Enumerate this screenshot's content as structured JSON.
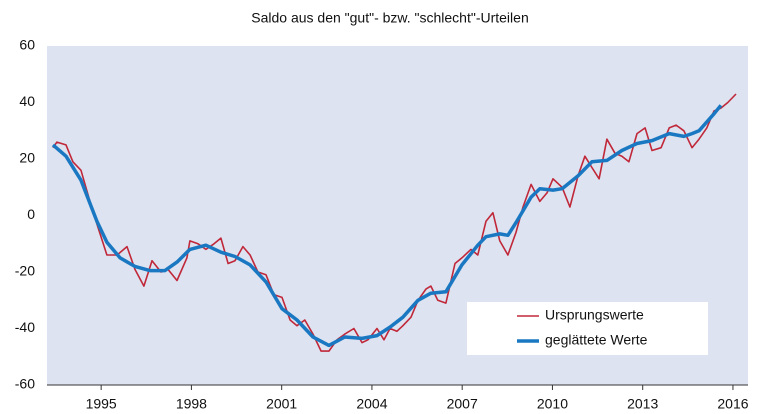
{
  "chart_data": {
    "type": "line",
    "title": "Saldo aus den \"gut\"- bzw. \"schlecht\"-Urteilen",
    "xlim": [
      1993.2,
      2016.5
    ],
    "xticks": [
      1995,
      1998,
      2001,
      2004,
      2007,
      2010,
      2013,
      2016
    ],
    "ylim": [
      -60,
      60
    ],
    "yticks": [
      -60,
      -40,
      -20,
      0,
      20,
      40,
      60
    ],
    "grid": false,
    "legend": "lower right",
    "series": [
      {
        "name": "Ursprungswerte",
        "color": "#c0283a",
        "x": [
          1993.4,
          1993.53,
          1993.83,
          1994.06,
          1994.33,
          1994.6,
          1994.86,
          1995.19,
          1995.53,
          1995.86,
          1996.12,
          1996.42,
          1996.69,
          1996.99,
          1997.22,
          1997.52,
          1997.85,
          1997.95,
          1998.22,
          1998.48,
          1998.75,
          1998.98,
          1999.22,
          1999.45,
          1999.71,
          1999.95,
          2000.21,
          2000.48,
          2000.74,
          2001.01,
          2001.28,
          2001.51,
          2001.77,
          2002.04,
          2002.31,
          2002.57,
          2002.84,
          2003.1,
          2003.4,
          2003.67,
          2003.87,
          2004.17,
          2004.4,
          2004.6,
          2004.83,
          2005.03,
          2005.3,
          2005.53,
          2005.8,
          2005.96,
          2006.19,
          2006.46,
          2006.76,
          2006.99,
          2007.29,
          2007.52,
          2007.79,
          2008.02,
          2008.25,
          2008.52,
          2008.79,
          2009.02,
          2009.29,
          2009.58,
          2009.82,
          2010.02,
          2010.32,
          2010.58,
          2010.85,
          2011.08,
          2011.31,
          2011.55,
          2011.81,
          2012.08,
          2012.31,
          2012.54,
          2012.81,
          2013.08,
          2013.31,
          2013.61,
          2013.88,
          2014.11,
          2014.37,
          2014.64,
          2014.87,
          2015.13,
          2015.37,
          2015.6,
          2015.83,
          2016.1
        ],
        "values": [
          24,
          26,
          25,
          19,
          16,
          6,
          -3,
          -14,
          -14,
          -11,
          -19,
          -25,
          -16,
          -20,
          -19,
          -23,
          -15,
          -9,
          -10,
          -12,
          -10,
          -8,
          -17,
          -16,
          -11,
          -14,
          -20,
          -21,
          -28,
          -29,
          -37,
          -39,
          -37,
          -42,
          -48,
          -48,
          -44,
          -42,
          -40,
          -45,
          -44,
          -40,
          -44,
          -40,
          -41,
          -39,
          -36,
          -30,
          -26,
          -25,
          -30,
          -31,
          -17,
          -15,
          -12,
          -14,
          -2,
          1,
          -9,
          -14,
          -6,
          3,
          11,
          5,
          8,
          13,
          10,
          3,
          14,
          21,
          17,
          13,
          27,
          22,
          21,
          19,
          29,
          31,
          23,
          24,
          31,
          32,
          30,
          24,
          27,
          31,
          37,
          38,
          40,
          43
        ]
      },
      {
        "name": "geglättete Werte",
        "color": "#1a78c2",
        "x": [
          1993.4,
          1993.83,
          1994.33,
          1994.86,
          1995.19,
          1995.63,
          1996.12,
          1996.62,
          1997.12,
          1997.52,
          1997.95,
          1998.48,
          1998.98,
          1999.45,
          1999.95,
          2000.48,
          2001.01,
          2001.51,
          2002.04,
          2002.57,
          2003.1,
          2003.67,
          2004.17,
          2004.6,
          2005.03,
          2005.53,
          2005.96,
          2006.46,
          2006.99,
          2007.52,
          2007.79,
          2008.25,
          2008.52,
          2008.79,
          2009.29,
          2009.58,
          2010.02,
          2010.32,
          2010.85,
          2011.31,
          2011.81,
          2012.31,
          2012.81,
          2013.31,
          2013.88,
          2014.37,
          2014.64,
          2014.87,
          2015.37,
          2015.6
        ],
        "values": [
          25,
          21,
          12.5,
          -2,
          -9.5,
          -15,
          -18,
          -19.5,
          -19.5,
          -16.5,
          -12,
          -10.5,
          -13,
          -14.5,
          -17.5,
          -23.5,
          -33,
          -37,
          -43,
          -46,
          -43,
          -43.5,
          -42.5,
          -39.5,
          -36,
          -30,
          -27.5,
          -27,
          -17.5,
          -10.5,
          -7.5,
          -6.5,
          -7,
          -2.5,
          6.5,
          9.5,
          9,
          9.5,
          14,
          19,
          19.5,
          23,
          25.5,
          26.5,
          29,
          28,
          29,
          30,
          36,
          39
        ]
      }
    ]
  }
}
